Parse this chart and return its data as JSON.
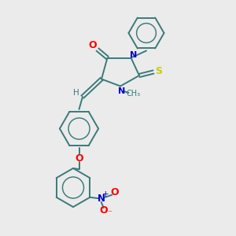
{
  "background_color": "#ebebeb",
  "bond_color": "#3a7a7a",
  "atom_colors": {
    "O": "#ff0000",
    "N": "#0000cc",
    "S": "#cccc00",
    "C": "#3a7a7a",
    "H": "#3a7a7a"
  }
}
